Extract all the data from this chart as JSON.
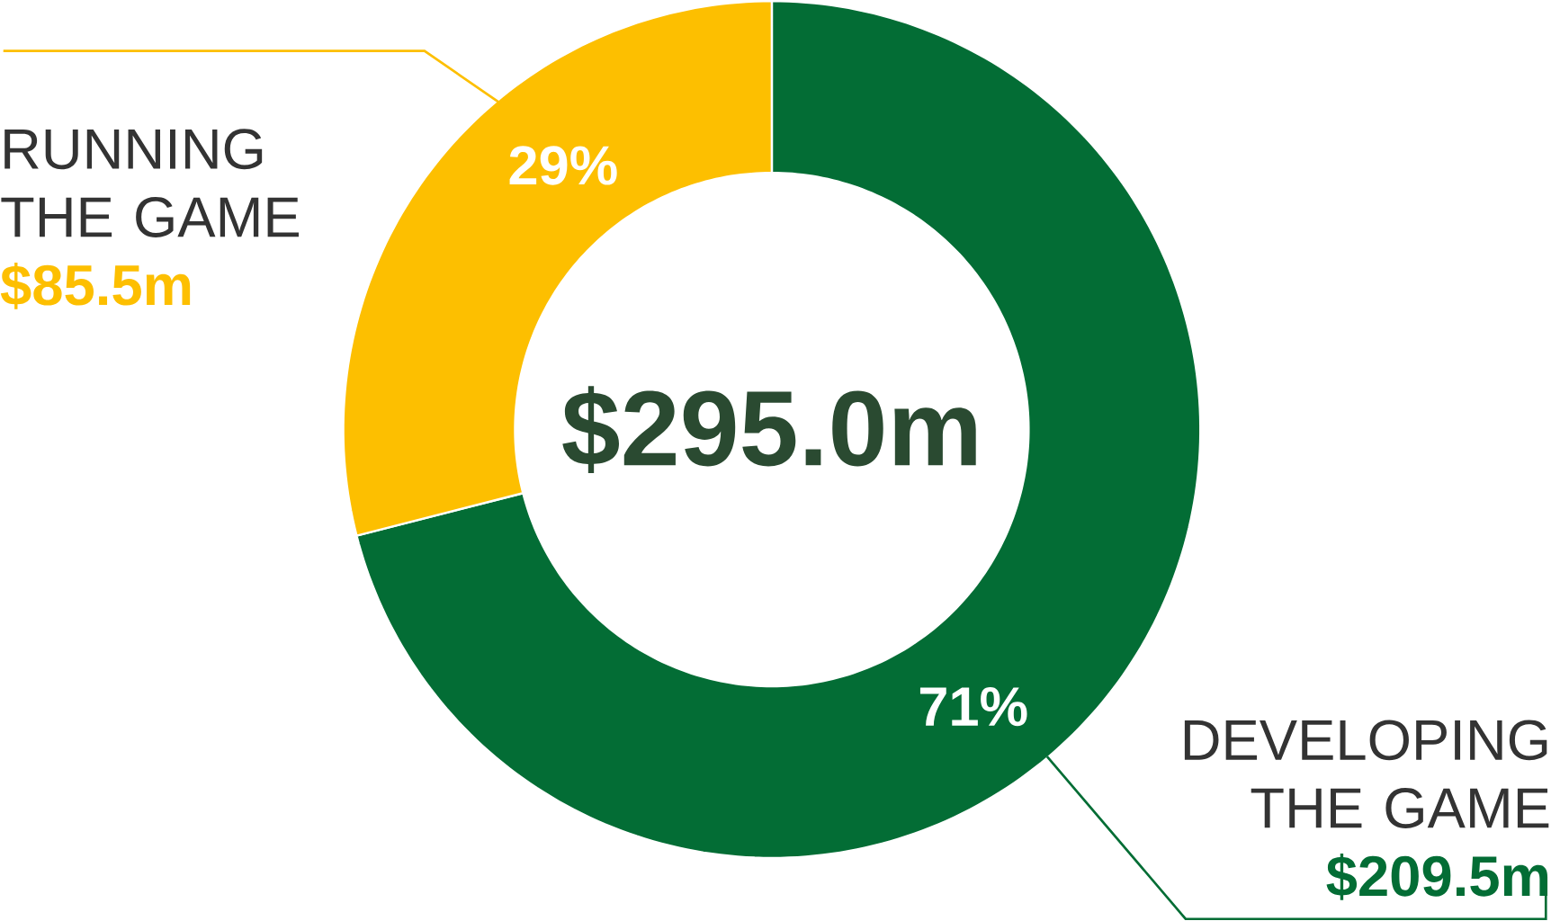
{
  "chart_data": {
    "type": "donut",
    "categories": [
      "DEVELOPING THE GAME",
      "RUNNING THE GAME"
    ],
    "values": [
      209.5,
      85.5
    ],
    "colors": [
      "#036d35",
      "#fdbf00"
    ],
    "value_labels": [
      "$209.5m",
      "$85.5m"
    ],
    "annotations": [
      "$295.0m",
      "71%",
      "29%"
    ]
  }
}
